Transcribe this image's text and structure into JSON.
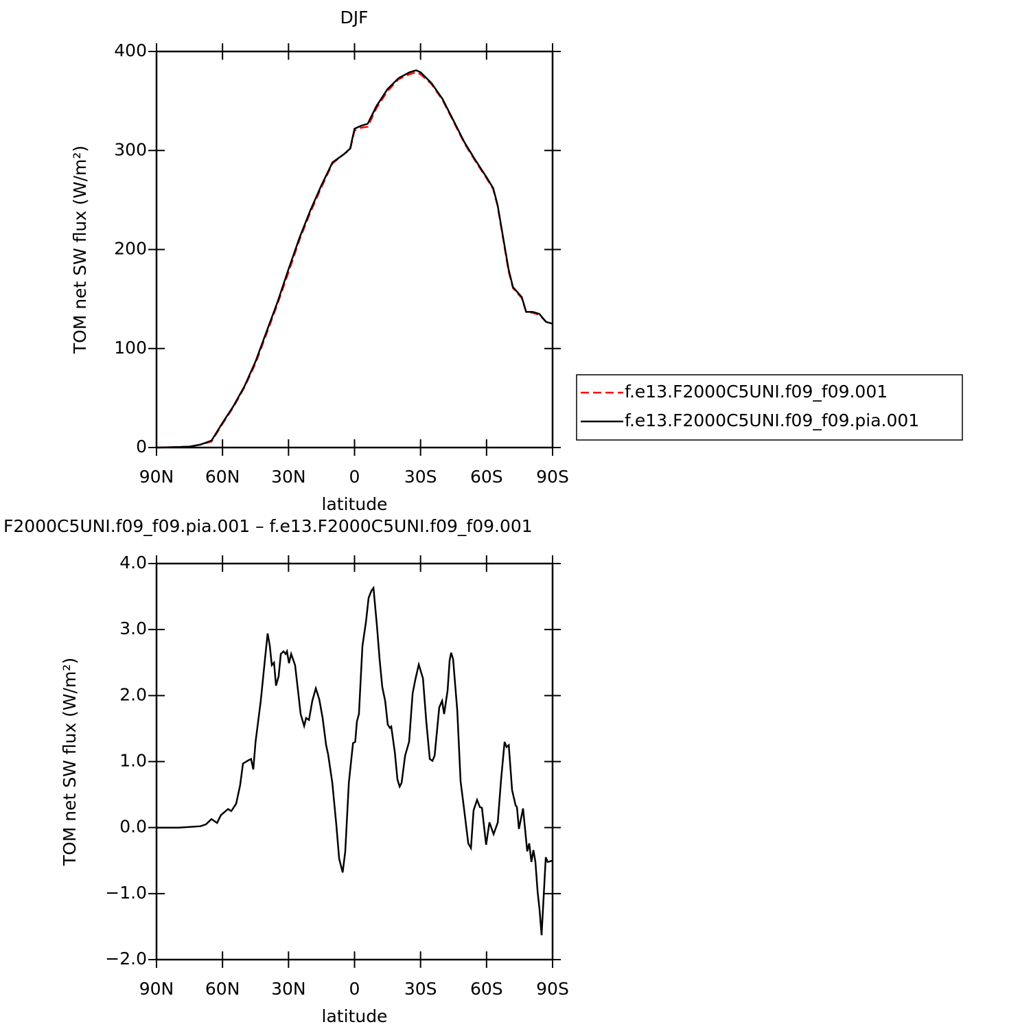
{
  "chart_data": [
    {
      "type": "line",
      "title": "DJF",
      "xlabel": "latitude",
      "ylabel": "TOM net SW flux (W/m²)",
      "xlim": [
        90,
        -90
      ],
      "ylim": [
        0,
        400
      ],
      "xticks": [
        {
          "value": 90,
          "label": "90N"
        },
        {
          "value": 60,
          "label": "60N"
        },
        {
          "value": 30,
          "label": "30N"
        },
        0,
        {
          "value": -30,
          "label": "30S"
        },
        {
          "value": -60,
          "label": "60S"
        },
        {
          "value": -90,
          "label": "90S"
        }
      ],
      "yticks": [
        0,
        100,
        200,
        300,
        400
      ],
      "legend": "right",
      "x": [
        90,
        80,
        75,
        70,
        65,
        60,
        55,
        50,
        45,
        40,
        35,
        30,
        25,
        20,
        15,
        10,
        5,
        2,
        0,
        -3,
        -6,
        -10,
        -15,
        -20,
        -25,
        -28,
        -30,
        -35,
        -40,
        -45,
        -50,
        -55,
        -60,
        -63,
        -65,
        -70,
        -72,
        -76,
        -78,
        -81,
        -84,
        -87,
        -90
      ],
      "series": [
        {
          "name": "f.e13.F2000C5UNI.f09_f09.001",
          "color": "#ff0000",
          "linestyle": "dashed",
          "values": [
            0,
            0.5,
            1,
            3,
            6,
            24,
            41,
            61,
            85,
            115,
            145,
            177,
            210,
            238,
            263,
            287,
            296,
            301,
            320,
            323,
            324,
            343,
            360,
            372,
            377,
            379,
            377,
            367,
            351,
            329,
            307,
            289,
            272,
            261,
            244,
            178,
            161,
            151,
            137,
            136,
            134,
            127,
            125
          ]
        },
        {
          "name": "f.e13.F2000C5UNI.f09_f09.pia.001",
          "color": "#000000",
          "linestyle": "solid",
          "values": [
            0,
            0.5,
            1,
            3,
            7,
            25,
            42,
            62,
            87,
            117,
            147,
            180,
            212,
            240,
            265,
            288,
            296,
            302,
            322,
            325,
            327,
            345,
            362,
            373,
            379,
            381,
            379,
            368,
            352,
            330,
            308,
            290,
            273,
            262,
            245,
            180,
            162,
            152,
            137,
            137,
            135,
            127,
            125
          ]
        }
      ]
    },
    {
      "type": "line",
      "title": "F2000C5UNI.f09_f09.pia.001 – f.e13.F2000C5UNI.f09_f09.001",
      "xlabel": "latitude",
      "ylabel": "TOM net SW flux (W/m²)",
      "xlim": [
        90,
        -90
      ],
      "ylim": [
        -2,
        4
      ],
      "xticks": [
        {
          "value": 90,
          "label": "90N"
        },
        {
          "value": 60,
          "label": "60N"
        },
        {
          "value": 30,
          "label": "30N"
        },
        0,
        {
          "value": -30,
          "label": "30S"
        },
        {
          "value": -60,
          "label": "60S"
        },
        {
          "value": -90,
          "label": "90S"
        }
      ],
      "yticks": [
        {
          "value": -2,
          "label": "−2.0"
        },
        {
          "value": -1,
          "label": "−1.0"
        },
        {
          "value": 0,
          "label": "0.0"
        },
        {
          "value": 1,
          "label": "1.0"
        },
        {
          "value": 2,
          "label": "2.0"
        },
        {
          "value": 3,
          "label": "3.0"
        },
        {
          "value": 4,
          "label": "4.0"
        }
      ],
      "x": [
        90,
        80,
        70,
        67.5,
        65,
        62.5,
        60.7,
        57.5,
        56,
        53.8,
        52,
        50.7,
        48.2,
        47,
        46,
        45,
        42.6,
        40.7,
        39.5,
        38.5,
        37.6,
        36.6,
        35.7,
        34.5,
        33.5,
        32.3,
        31.3,
        30.7,
        29.8,
        28.8,
        27,
        25.7,
        24.5,
        22.9,
        22,
        20.7,
        19.2,
        17.6,
        16,
        14.5,
        12.9,
        12,
        10.1,
        8.3,
        7,
        5.4,
        4.2,
        2.6,
        0.7,
        -0.3,
        -1.1,
        -2,
        -3.6,
        -5.2,
        -6.4,
        -7.7,
        -8.6,
        -10.2,
        -11.4,
        -12.6,
        -13.9,
        -15.1,
        -16.1,
        -16.7,
        -18.3,
        -19.5,
        -20.5,
        -21.4,
        -23,
        -24.8,
        -26.4,
        -27.6,
        -29.2,
        -31.1,
        -32.6,
        -34.2,
        -35.4,
        -36.4,
        -38.5,
        -39.8,
        -40.7,
        -42.3,
        -43.2,
        -43.9,
        -44.8,
        -46.7,
        -48.2,
        -49.8,
        -51.7,
        -52.9,
        -54.1,
        -55.7,
        -57,
        -57.9,
        -59.8,
        -61.3,
        -63.2,
        -65.1,
        -66.6,
        -68.2,
        -69.1,
        -70.1,
        -71.6,
        -73.2,
        -73.8,
        -74.7,
        -76.6,
        -78.5,
        -79.4,
        -80.4,
        -81.3,
        -82.2,
        -83.2,
        -84.1,
        -85,
        -86.9,
        -87.8,
        -90
      ],
      "series": [
        {
          "color": "#000000",
          "linestyle": "solid",
          "values": [
            0,
            0,
            0.02,
            0.05,
            0.13,
            0.07,
            0.19,
            0.28,
            0.25,
            0.36,
            0.64,
            0.97,
            1.02,
            1.04,
            0.88,
            1.3,
            1.92,
            2.55,
            2.94,
            2.75,
            2.46,
            2.5,
            2.15,
            2.29,
            2.63,
            2.67,
            2.63,
            2.67,
            2.49,
            2.63,
            2.46,
            2.08,
            1.72,
            1.54,
            1.66,
            1.63,
            1.92,
            2.11,
            1.94,
            1.66,
            1.25,
            1.11,
            0.68,
            0.05,
            -0.47,
            -0.68,
            -0.36,
            0.68,
            1.28,
            1.3,
            1.61,
            1.72,
            2.75,
            3.12,
            3.48,
            3.59,
            3.63,
            3.05,
            2.55,
            2.13,
            1.92,
            1.56,
            1.51,
            1.53,
            1.14,
            0.73,
            0.62,
            0.68,
            1.09,
            1.3,
            2.03,
            2.24,
            2.47,
            2.26,
            1.61,
            1.04,
            1.01,
            1.09,
            1.82,
            1.92,
            1.72,
            2.08,
            2.53,
            2.65,
            2.55,
            1.77,
            0.7,
            0.28,
            -0.24,
            -0.31,
            0.26,
            0.42,
            0.31,
            0.3,
            -0.26,
            0.08,
            -0.1,
            0.08,
            0.73,
            1.3,
            1.22,
            1.25,
            0.57,
            0.34,
            0.31,
            -0.02,
            0.29,
            -0.36,
            -0.24,
            -0.52,
            -0.34,
            -0.52,
            -0.97,
            -1.25,
            -1.63,
            -0.45,
            -0.52,
            -0.5
          ]
        }
      ]
    }
  ]
}
